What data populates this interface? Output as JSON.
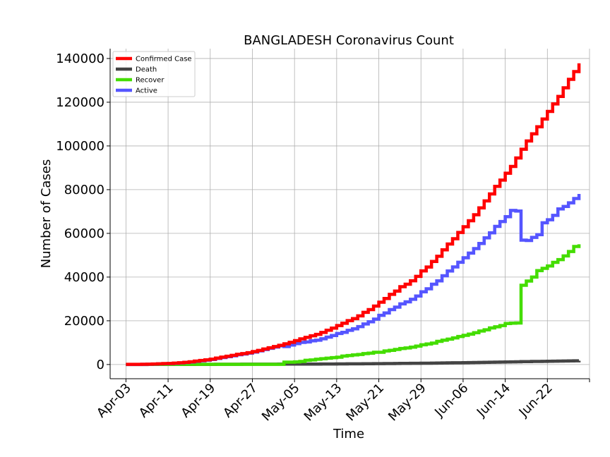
{
  "chart_data": {
    "type": "line",
    "title": "BANGLADESH Coronavirus Count",
    "xlabel": "Time",
    "ylabel": "Number of Cases",
    "x_start": "2020-04-03",
    "x_end": "2020-06-26",
    "xlim": [
      "2020-03-31",
      "2020-06-30"
    ],
    "ylim": [
      -6500,
      144500
    ],
    "grid": true,
    "legend_position": "top-left",
    "x_ticks": [
      "Apr-03",
      "Apr-11",
      "Apr-19",
      "Apr-27",
      "May-05",
      "May-13",
      "May-21",
      "May-29",
      "Jun-06",
      "Jun-14",
      "Jun-22"
    ],
    "y_ticks": [
      0,
      20000,
      40000,
      60000,
      80000,
      100000,
      120000,
      140000
    ],
    "series": [
      {
        "name": "Confirmed Case",
        "color": "#ff0000",
        "values": [
          61,
          70,
          88,
          123,
          164,
          218,
          330,
          424,
          482,
          621,
          803,
          1012,
          1231,
          1572,
          1838,
          2144,
          2456,
          2948,
          3382,
          3772,
          4186,
          4689,
          4998,
          5416,
          5913,
          6462,
          7103,
          7667,
          8238,
          8790,
          9455,
          10143,
          10929,
          11719,
          12425,
          13134,
          13770,
          14657,
          15691,
          16660,
          17822,
          18863,
          20065,
          20995,
          22268,
          23870,
          25121,
          26738,
          28511,
          30205,
          32078,
          33610,
          35585,
          36751,
          38292,
          40321,
          42844,
          44608,
          47153,
          49534,
          52445,
          55140,
          57563,
          60391,
          63026,
          65769,
          68504,
          71675,
          74865,
          78052,
          81523,
          84379,
          87520,
          90619,
          94481,
          98489,
          102292,
          105535,
          108775,
          112306,
          115786,
          119198,
          122660,
          126606,
          130474,
          134020,
          137787
        ]
      },
      {
        "name": "Death",
        "color": "#444444",
        "values": [
          6,
          6,
          8,
          12,
          17,
          20,
          21,
          27,
          30,
          34,
          39,
          46,
          50,
          60,
          75,
          84,
          91,
          101,
          110,
          120,
          127,
          131,
          140,
          145,
          152,
          155,
          163,
          168,
          170,
          175,
          177,
          182,
          183,
          186,
          199,
          206,
          214,
          228,
          239,
          250,
          269,
          283,
          298,
          314,
          328,
          349,
          370,
          386,
          408,
          432,
          452,
          480,
          501,
          522,
          544,
          559,
          582,
          610,
          650,
          672,
          709,
          746,
          781,
          811,
          846,
          888,
          930,
          975,
          1012,
          1049,
          1095,
          1139,
          1171,
          1209,
          1262,
          1305,
          1343,
          1388,
          1425,
          1464,
          1502,
          1545,
          1582,
          1621,
          1661,
          1695,
          1738
        ]
      },
      {
        "name": "Recover",
        "color": "#44dd00",
        "values": [
          26,
          30,
          33,
          33,
          33,
          36,
          39,
          42,
          42,
          49,
          58,
          66,
          75,
          75,
          75,
          75,
          75,
          75,
          75,
          75,
          75,
          75,
          75,
          75,
          75,
          75,
          75,
          75,
          75,
          75,
          1063,
          1063,
          1209,
          1403,
          1910,
          2101,
          2414,
          2650,
          2902,
          3147,
          3361,
          3882,
          4117,
          4373,
          4585,
          4993,
          5207,
          5602,
          5602,
          6190,
          6486,
          6901,
          7334,
          7579,
          7925,
          8425,
          9015,
          9375,
          9781,
          10597,
          11120,
          11590,
          12161,
          12804,
          13325,
          13903,
          14560,
          15337,
          15900,
          16748,
          17249,
          17827,
          18730,
          18902,
          19000,
          36264,
          38189,
          40000,
          42945,
          43993,
          45077,
          46755,
          48000,
          49666,
          51700,
          54000,
          55000
        ]
      },
      {
        "name": "Active",
        "color": "#5555ff",
        "values": [
          29,
          34,
          47,
          78,
          114,
          162,
          270,
          355,
          410,
          538,
          706,
          900,
          1106,
          1437,
          1688,
          1985,
          2290,
          2772,
          3197,
          3577,
          3984,
          4483,
          4783,
          5196,
          5686,
          6232,
          6865,
          7424,
          7993,
          8540,
          8215,
          8898,
          9537,
          10130,
          10316,
          10827,
          11142,
          11779,
          12550,
          13263,
          14192,
          14698,
          15650,
          16308,
          17355,
          18528,
          19544,
          20750,
          22501,
          23583,
          25140,
          26229,
          27750,
          28650,
          29823,
          31337,
          33247,
          34623,
          36722,
          38265,
          40616,
          42804,
          44621,
          46776,
          48855,
          50978,
          53014,
          55363,
          57953,
          60255,
          63179,
          65413,
          67619,
          70508,
          70219,
          56920,
          56760,
          58147,
          59405,
          64849,
          66207,
          68243,
          71160,
          72319,
          73974,
          75925,
          78050
        ]
      }
    ]
  }
}
